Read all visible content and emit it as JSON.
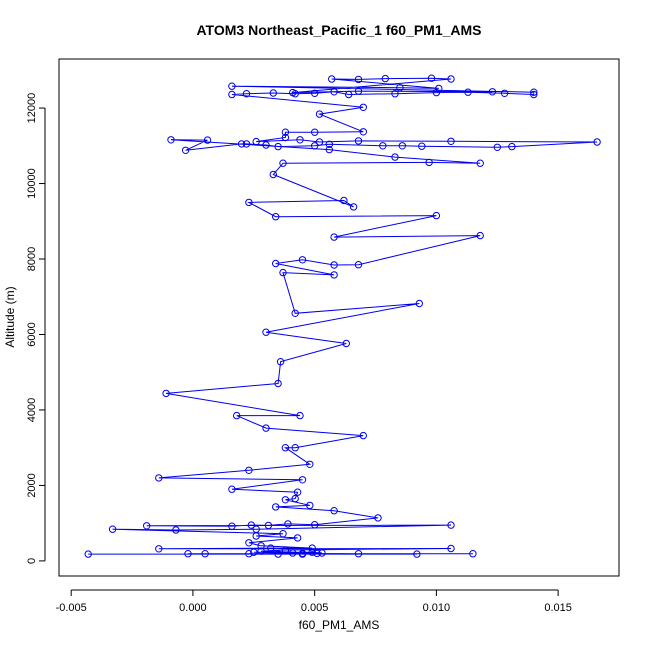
{
  "chart_data": {
    "type": "line",
    "title": "ATOM3 Northeast_Pacific_1 f60_PM1_AMS",
    "xlabel": "f60_PM1_AMS",
    "ylabel": "Altitude (m)",
    "xlim": [
      -0.0055,
      0.0175
    ],
    "ylim": [
      -400,
      13300
    ],
    "x_ticks": [
      -0.005,
      0.0,
      0.005,
      0.01,
      0.015
    ],
    "x_tick_labels": [
      "-0.005",
      "0.000",
      "0.005",
      "0.010",
      "0.015"
    ],
    "y_ticks": [
      0,
      2000,
      4000,
      6000,
      8000,
      10000,
      12000
    ],
    "y_tick_labels": [
      "0",
      "2000",
      "4000",
      "6000",
      "8000",
      "10000",
      "12000"
    ],
    "grid": false,
    "series": [
      {
        "color": "#0000ee",
        "marker": "open-circle",
        "points": [
          [
            -0.0043,
            180
          ],
          [
            0.0092,
            180
          ],
          [
            0.0005,
            190
          ],
          [
            0.0035,
            180
          ],
          [
            0.0045,
            180
          ],
          [
            0.0045,
            200
          ],
          [
            0.0068,
            190
          ],
          [
            0.0115,
            190
          ],
          [
            -0.0002,
            190
          ],
          [
            0.0023,
            190
          ],
          [
            0.0051,
            200
          ],
          [
            0.0041,
            210
          ],
          [
            0.0025,
            230
          ],
          [
            0.0049,
            230
          ],
          [
            0.0053,
            210
          ],
          [
            0.0028,
            260
          ],
          [
            0.0038,
            290
          ],
          [
            0.0106,
            330
          ],
          [
            -0.0014,
            320
          ],
          [
            0.0032,
            340
          ],
          [
            0.0049,
            340
          ],
          [
            0.0028,
            400
          ],
          [
            0.0023,
            480
          ],
          [
            0.0043,
            610
          ],
          [
            0.0026,
            660
          ],
          [
            0.0037,
            720
          ],
          [
            -0.0033,
            840
          ],
          [
            -0.0007,
            820
          ],
          [
            0.0026,
            840
          ],
          [
            0.0106,
            950
          ],
          [
            -0.0019,
            930
          ],
          [
            0.0016,
            920
          ],
          [
            0.0024,
            950
          ],
          [
            0.0031,
            940
          ],
          [
            0.0039,
            980
          ],
          [
            0.005,
            960
          ],
          [
            0.0076,
            1140
          ],
          [
            0.0058,
            1330
          ],
          [
            0.0034,
            1430
          ],
          [
            0.0048,
            1470
          ],
          [
            0.0038,
            1620
          ],
          [
            0.0042,
            1650
          ],
          [
            0.0043,
            1820
          ],
          [
            0.0016,
            1900
          ],
          [
            0.0045,
            2150
          ],
          [
            -0.0014,
            2200
          ],
          [
            0.0023,
            2400
          ],
          [
            0.0048,
            2560
          ],
          [
            0.0038,
            3000
          ],
          [
            0.0042,
            3000
          ],
          [
            0.007,
            3320
          ],
          [
            0.003,
            3520
          ],
          [
            0.0018,
            3850
          ],
          [
            0.0044,
            3850
          ],
          [
            -0.0011,
            4440
          ],
          [
            0.0035,
            4700
          ],
          [
            0.0036,
            5280
          ],
          [
            0.0063,
            5760
          ],
          [
            0.003,
            6060
          ],
          [
            0.0093,
            6820
          ],
          [
            0.0042,
            6560
          ],
          [
            0.0037,
            7640
          ],
          [
            0.0058,
            7580
          ],
          [
            0.0034,
            7880
          ],
          [
            0.0045,
            7980
          ],
          [
            0.0058,
            7840
          ],
          [
            0.0068,
            7850
          ],
          [
            0.0118,
            8620
          ],
          [
            0.0058,
            8580
          ],
          [
            0.01,
            9150
          ],
          [
            0.0034,
            9120
          ],
          [
            0.0023,
            9500
          ],
          [
            0.0062,
            9550
          ],
          [
            0.0066,
            9380
          ],
          [
            0.0033,
            10240
          ],
          [
            0.0037,
            10540
          ],
          [
            0.0097,
            10560
          ],
          [
            0.0118,
            10540
          ],
          [
            0.0083,
            10700
          ],
          [
            0.0056,
            10900
          ],
          [
            -0.0009,
            11160
          ],
          [
            0.0006,
            11150
          ],
          [
            -0.0003,
            10880
          ],
          [
            0.002,
            11050
          ],
          [
            0.0022,
            11050
          ],
          [
            0.003,
            11020
          ],
          [
            0.0035,
            10980
          ],
          [
            0.005,
            11000
          ],
          [
            0.0056,
            11040
          ],
          [
            0.0078,
            11000
          ],
          [
            0.0086,
            11000
          ],
          [
            0.0094,
            10990
          ],
          [
            0.0125,
            10960
          ],
          [
            0.0131,
            10980
          ],
          [
            0.0166,
            11100
          ],
          [
            0.0106,
            11120
          ],
          [
            0.0068,
            11130
          ],
          [
            0.0052,
            11100
          ],
          [
            0.0044,
            11160
          ],
          [
            0.0026,
            11110
          ],
          [
            0.0038,
            11220
          ],
          [
            0.0038,
            11360
          ],
          [
            0.005,
            11360
          ],
          [
            0.007,
            11370
          ],
          [
            0.0052,
            11840
          ],
          [
            0.007,
            12020
          ],
          [
            0.0016,
            12360
          ],
          [
            0.0022,
            12380
          ],
          [
            0.0033,
            12400
          ],
          [
            0.0042,
            12380
          ],
          [
            0.005,
            12390
          ],
          [
            0.0058,
            12430
          ],
          [
            0.0064,
            12360
          ],
          [
            0.0083,
            12380
          ],
          [
            0.01,
            12410
          ],
          [
            0.0113,
            12420
          ],
          [
            0.0128,
            12390
          ],
          [
            0.014,
            12360
          ],
          [
            0.014,
            12420
          ],
          [
            0.0016,
            12580
          ],
          [
            0.0085,
            12540
          ],
          [
            0.0101,
            12520
          ],
          [
            0.0057,
            12770
          ],
          [
            0.0068,
            12760
          ],
          [
            0.0079,
            12780
          ],
          [
            0.0098,
            12790
          ],
          [
            0.0106,
            12770
          ],
          [
            0.0041,
            12410
          ],
          [
            0.0068,
            12450
          ],
          [
            0.0123,
            12430
          ]
        ]
      }
    ]
  }
}
